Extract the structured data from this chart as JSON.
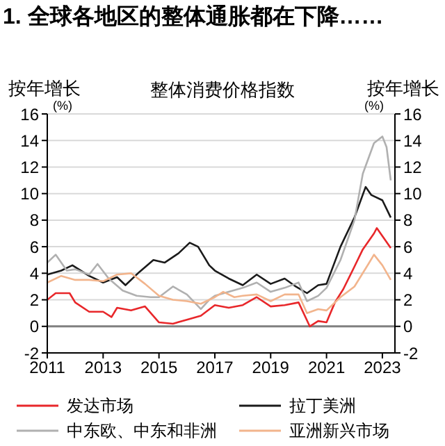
{
  "chart_data": {
    "type": "line",
    "title": "1. 全球各地区的整体通胀都在下降……",
    "subtitle": "整体消费价格指数",
    "ylabel": "按年增长 (%)",
    "y2label": "按年增长 (%)",
    "xlim": [
      2011,
      2023.45
    ],
    "xticks": [
      2011,
      2013,
      2015,
      2017,
      2019,
      2021,
      2023
    ],
    "ylim": [
      -2,
      16
    ],
    "yticks": [
      -2,
      0,
      2,
      4,
      6,
      8,
      10,
      12,
      14,
      16
    ],
    "y2lim": [
      -2,
      16
    ],
    "y2ticks": [
      -2,
      0,
      2,
      4,
      6,
      8,
      10,
      12,
      14,
      16
    ],
    "grid": "y",
    "legend": "bottom",
    "marker": "none",
    "line_style": "solid",
    "ref_lines": [
      {
        "axis": "y",
        "value": 0,
        "color": "#808080"
      }
    ],
    "series": [
      {
        "name": "发达市场",
        "color": "#e8272a",
        "x": [
          2011,
          2011.3,
          2011.8,
          2012,
          2012.5,
          2013,
          2013.3,
          2013.5,
          2014,
          2014.5,
          2015,
          2015.5,
          2016,
          2016.5,
          2017,
          2017.5,
          2018,
          2018.5,
          2019,
          2019.5,
          2020,
          2020.4,
          2020.7,
          2021,
          2021.3,
          2021.6,
          2022,
          2022.3,
          2022.7,
          2022.8,
          2023,
          2023.3
        ],
        "values": [
          2.0,
          2.5,
          2.5,
          1.8,
          1.1,
          1.1,
          0.7,
          1.4,
          1.2,
          1.5,
          0.3,
          0.2,
          0.5,
          0.8,
          1.6,
          1.4,
          1.6,
          2.2,
          1.5,
          1.6,
          1.8,
          0.0,
          0.4,
          0.3,
          1.8,
          2.8,
          4.5,
          5.8,
          7.0,
          7.4,
          6.8,
          5.9
        ]
      },
      {
        "name": "拉丁美洲",
        "color": "#1a1a1a",
        "x": [
          2011,
          2011.5,
          2011.9,
          2012.5,
          2013,
          2013.5,
          2013.8,
          2014.3,
          2014.8,
          2015.2,
          2015.7,
          2016.1,
          2016.4,
          2016.8,
          2017,
          2017.5,
          2018,
          2018.5,
          2019,
          2019.5,
          2019.9,
          2020.3,
          2020.7,
          2021,
          2021.5,
          2022,
          2022.4,
          2022.6,
          2023,
          2023.3
        ],
        "values": [
          3.9,
          4.2,
          4.6,
          3.8,
          3.3,
          3.7,
          3.1,
          4.1,
          5.0,
          4.8,
          5.5,
          6.3,
          6.0,
          4.6,
          4.2,
          3.6,
          3.1,
          3.9,
          3.2,
          3.6,
          3.0,
          2.5,
          3.1,
          3.2,
          6.0,
          8.2,
          10.5,
          9.9,
          9.5,
          8.2
        ]
      },
      {
        "name": "中东欧、中东和非洲",
        "color": "#b0b0b0",
        "x": [
          2011,
          2011.3,
          2011.7,
          2012,
          2012.5,
          2012.8,
          2013.2,
          2013.7,
          2014.2,
          2014.7,
          2015,
          2015.5,
          2016,
          2016.5,
          2016.8,
          2017,
          2017.5,
          2018,
          2018.5,
          2019,
          2019.5,
          2020,
          2020.3,
          2020.7,
          2021,
          2021.5,
          2022,
          2022.3,
          2022.7,
          2023,
          2023.15,
          2023.3
        ],
        "values": [
          4.8,
          5.4,
          4.2,
          4.3,
          3.9,
          4.7,
          3.6,
          2.7,
          2.3,
          2.2,
          2.2,
          3.0,
          2.4,
          1.3,
          2.0,
          2.3,
          2.6,
          2.9,
          3.3,
          2.6,
          2.9,
          3.3,
          1.9,
          2.3,
          2.9,
          5.0,
          8.0,
          11.5,
          13.8,
          14.3,
          13.5,
          11.0
        ]
      },
      {
        "name": "亚洲新兴市场",
        "color": "#f2b48c",
        "x": [
          2011,
          2011.5,
          2012,
          2012.5,
          2013,
          2013.5,
          2014,
          2014.5,
          2015,
          2015.5,
          2016,
          2016.5,
          2017,
          2017.3,
          2017.7,
          2018,
          2018.5,
          2019,
          2019.5,
          2020,
          2020.3,
          2020.7,
          2021,
          2021.5,
          2022,
          2022.5,
          2022.7,
          2023,
          2023.3
        ],
        "values": [
          3.3,
          3.8,
          3.5,
          3.5,
          3.4,
          3.9,
          4.0,
          3.2,
          2.3,
          2.0,
          1.9,
          1.7,
          2.2,
          2.6,
          2.2,
          2.3,
          2.4,
          1.9,
          2.4,
          2.4,
          1.0,
          1.3,
          1.2,
          2.2,
          3.0,
          4.7,
          5.4,
          4.6,
          3.5
        ]
      }
    ]
  }
}
